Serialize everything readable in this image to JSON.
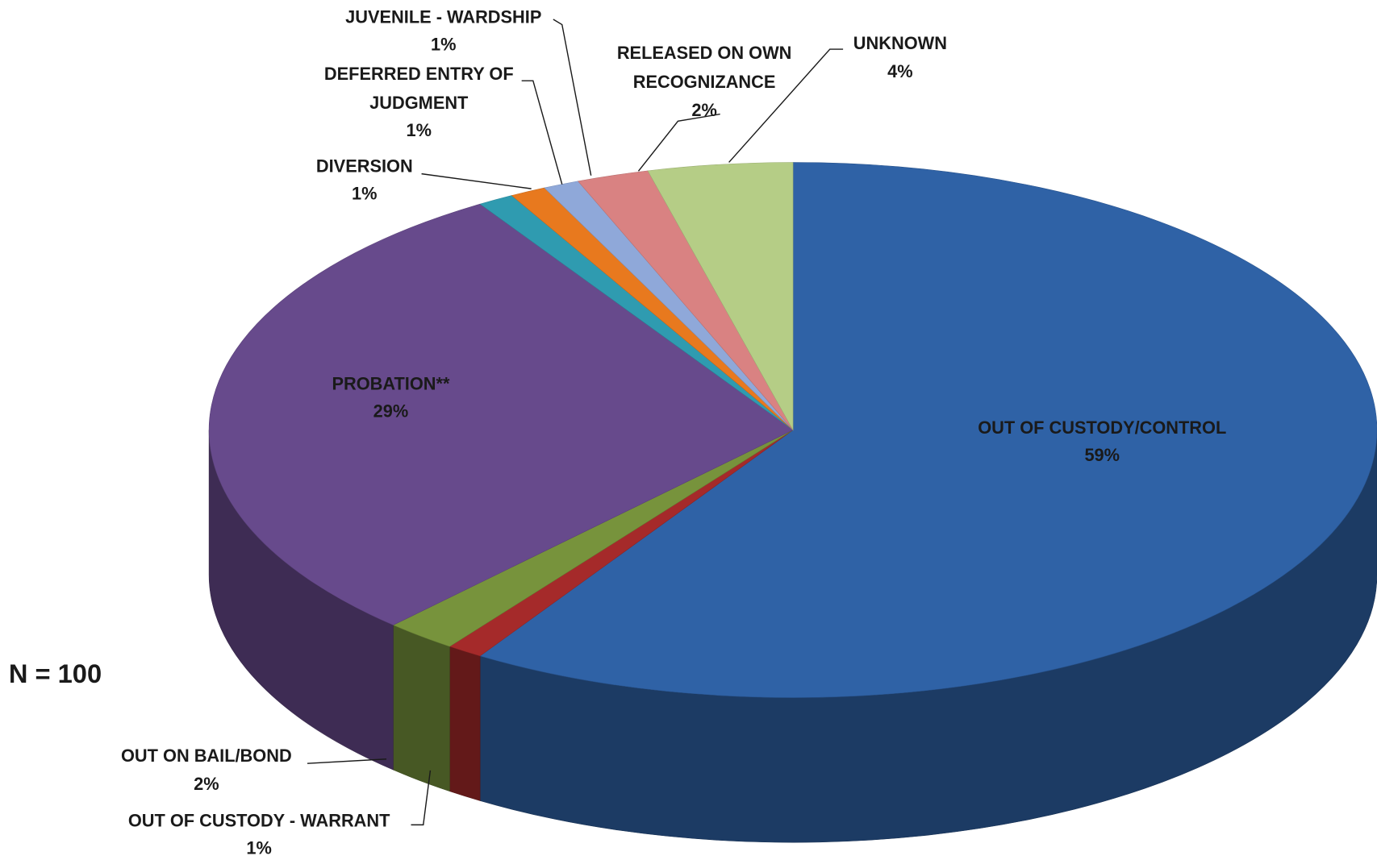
{
  "chart_data": {
    "type": "pie",
    "categories": [
      "OUT OF CUSTODY/CONTROL",
      "OUT OF CUSTODY - WARRANT",
      "OUT ON BAIL/BOND",
      "PROBATION**",
      "DIVERSION",
      "DEFERRED ENTRY OF JUDGMENT",
      "JUVENILE - WARDSHIP",
      "RELEASED ON OWN RECOGNIZANCE",
      "UNKNOWN"
    ],
    "values": [
      59,
      1,
      2,
      29,
      1,
      1,
      1,
      2,
      4
    ],
    "value_labels": [
      "59%",
      "1%",
      "2%",
      "29%",
      "1%",
      "1%",
      "1%",
      "2%",
      "4%"
    ],
    "colors": [
      "#2f62a6",
      "#a52a2a",
      "#77933c",
      "#674a8c",
      "#2f9bb0",
      "#e8791e",
      "#8fa8d9",
      "#d98282",
      "#b5cd86"
    ],
    "annotation": "N = 100"
  }
}
